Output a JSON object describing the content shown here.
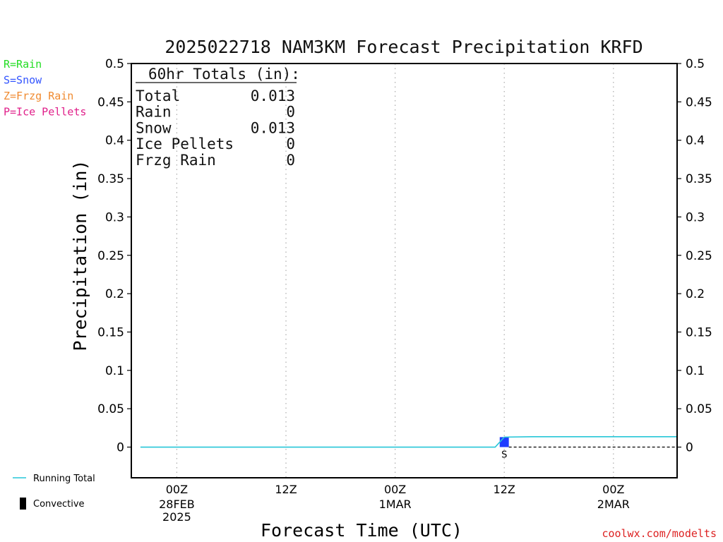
{
  "chart_data": {
    "type": "bar",
    "title": "2025022718 NAM3KM Forecast Precipitation KRFD",
    "xlabel": "Forecast Time (UTC)",
    "ylabel": "Precipitation (in)",
    "ylim": [
      -0.04,
      0.5
    ],
    "yticks": [
      "0",
      "0.05",
      "0.1",
      "0.15",
      "0.2",
      "0.25",
      "0.3",
      "0.35",
      "0.4",
      "0.45",
      "0.5"
    ],
    "x_ticks": [
      {
        "hour": 6,
        "line1": "00Z",
        "line2": "28FEB",
        "line3": "2025"
      },
      {
        "hour": 18,
        "line1": "12Z",
        "line2": "",
        "line3": ""
      },
      {
        "hour": 30,
        "line1": "00Z",
        "line2": "1MAR",
        "line3": ""
      },
      {
        "hour": 42,
        "line1": "12Z",
        "line2": "",
        "line3": ""
      },
      {
        "hour": 54,
        "line1": "00Z",
        "line2": "2MAR",
        "line3": ""
      }
    ],
    "xlim": [
      1,
      61
    ],
    "grid": "vertical dotted at 00Z/12Z",
    "bars": [
      {
        "start_hour": 41.5,
        "end_hour": 42.5,
        "value": 0.013,
        "type_letter": "S",
        "color": "#1f3cff"
      }
    ],
    "running_total": {
      "hours": [
        2,
        41,
        42,
        45,
        61
      ],
      "values": [
        0,
        0,
        0.013,
        0.0135,
        0.0135
      ],
      "color": "#27c6d8"
    },
    "totals_box": {
      "header": "60hr Totals (in):",
      "rows": [
        {
          "label": "Total",
          "value": "0.013"
        },
        {
          "label": "Rain",
          "value": "0"
        },
        {
          "label": "Snow",
          "value": "0.013"
        },
        {
          "label": "Ice Pellets",
          "value": "0"
        },
        {
          "label": "Frzg Rain",
          "value": "0"
        }
      ]
    },
    "type_legend": [
      {
        "text": "R=Rain",
        "color": "#22dd22"
      },
      {
        "text": "S=Snow",
        "color": "#3355ff"
      },
      {
        "text": "Z=Frzg Rain",
        "color": "#f08a30"
      },
      {
        "text": "P=Ice Pellets",
        "color": "#e0208a"
      }
    ],
    "line_legend": [
      {
        "text": "Running Total",
        "color": "#27c6d8",
        "kind": "line"
      },
      {
        "text": "Convective",
        "color": "#000000",
        "kind": "bar"
      }
    ]
  },
  "credit": {
    "text": "coolwx.com/modelts",
    "color": "#dd2222"
  }
}
